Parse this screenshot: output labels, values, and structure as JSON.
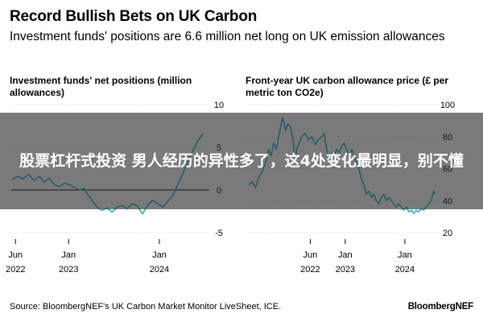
{
  "header": {
    "title": "Record Bullish Bets on UK Carbon",
    "subtitle": "Investment funds' positions are 6.6 million net long on UK emission allowances"
  },
  "overlay": {
    "text": "股票杠杆式投资 男人经历的异性多了，这4处变化最明显，别不懂"
  },
  "footer": {
    "source": "Source: BloombergNEF's UK Carbon Market Monitor LiveSheet, ICE.",
    "brand": "BloombergNEF"
  },
  "colors": {
    "series": "#1fb5c8",
    "zero_line": "#000000",
    "grid": "#d9d9d9"
  },
  "chart_data": [
    {
      "type": "line",
      "title": "Investment funds' net positions (million allowances)",
      "x_ticks": [
        {
          "line1": "Jun",
          "line2": "2022",
          "date": "2022-06-01"
        },
        {
          "line1": "Jan",
          "line2": "2023",
          "date": "2023-01-01"
        },
        {
          "line1": "Jan",
          "line2": "2024",
          "date": "2024-01-01"
        }
      ],
      "y_ticks": [
        "10",
        "5",
        "0",
        "-5"
      ],
      "y_tick_values": [
        10,
        5,
        0,
        -5
      ],
      "xlim": [
        "2022-05-15",
        "2024-07-20"
      ],
      "ylim": [
        -5,
        10
      ],
      "grid": true,
      "series": [
        {
          "values": [
            [
              "2022-05-20",
              1.2
            ],
            [
              "2022-06-10",
              1.6
            ],
            [
              "2022-07-01",
              1.3
            ],
            [
              "2022-07-25",
              1.8
            ],
            [
              "2022-08-15",
              1.1
            ],
            [
              "2022-09-05",
              1.6
            ],
            [
              "2022-09-25",
              0.9
            ],
            [
              "2022-10-15",
              1.4
            ],
            [
              "2022-11-05",
              0.6
            ],
            [
              "2022-11-25",
              0.4
            ],
            [
              "2022-12-15",
              0.8
            ],
            [
              "2023-01-05",
              0.6
            ],
            [
              "2023-01-25",
              0.3
            ],
            [
              "2023-02-15",
              0.0
            ],
            [
              "2023-03-05",
              0.2
            ],
            [
              "2023-03-20",
              -0.6
            ],
            [
              "2023-04-05",
              -1.2
            ],
            [
              "2023-04-25",
              -2.0
            ],
            [
              "2023-05-15",
              -2.4
            ],
            [
              "2023-06-05",
              -2.1
            ],
            [
              "2023-06-25",
              -2.6
            ],
            [
              "2023-07-15",
              -2.0
            ],
            [
              "2023-08-05",
              -1.8
            ],
            [
              "2023-08-25",
              -2.2
            ],
            [
              "2023-09-15",
              -1.6
            ],
            [
              "2023-10-05",
              -1.9
            ],
            [
              "2023-10-25",
              -2.8
            ],
            [
              "2023-11-15",
              -1.8
            ],
            [
              "2023-12-05",
              -1.2
            ],
            [
              "2023-12-25",
              -1.6
            ],
            [
              "2024-01-15",
              -2.0
            ],
            [
              "2024-02-05",
              -1.3
            ],
            [
              "2024-02-25",
              -0.6
            ],
            [
              "2024-03-15",
              0.6
            ],
            [
              "2024-04-05",
              2.0
            ],
            [
              "2024-04-25",
              3.4
            ],
            [
              "2024-05-15",
              4.6
            ],
            [
              "2024-06-05",
              5.8
            ],
            [
              "2024-06-25",
              6.6
            ]
          ]
        }
      ]
    },
    {
      "type": "line",
      "title": "Front-year UK carbon allowance price (£ per metric ton CO2e)",
      "x_ticks": [
        {
          "line1": "Jun",
          "line2": "2022",
          "date": "2022-06-01"
        },
        {
          "line1": "Jan",
          "line2": "2023",
          "date": "2023-01-01"
        },
        {
          "line1": "Jan",
          "line2": "2024",
          "date": "2024-01-01"
        }
      ],
      "y_ticks": [
        "100",
        "80",
        "60",
        "40",
        "20"
      ],
      "y_tick_values": [
        100,
        80,
        60,
        40,
        20
      ],
      "xlim": [
        "2021-05-01",
        "2024-08-10"
      ],
      "ylim": [
        20,
        100
      ],
      "grid": true,
      "series": [
        {
          "values": [
            [
              "2021-05-20",
              50
            ],
            [
              "2021-06-10",
              52
            ],
            [
              "2021-07-01",
              48
            ],
            [
              "2021-07-20",
              54
            ],
            [
              "2021-08-10",
              58
            ],
            [
              "2021-09-01",
              64
            ],
            [
              "2021-09-20",
              72
            ],
            [
              "2021-10-05",
              68
            ],
            [
              "2021-10-20",
              76
            ],
            [
              "2021-11-05",
              72
            ],
            [
              "2021-11-20",
              80
            ],
            [
              "2021-12-05",
              88
            ],
            [
              "2021-12-15",
              92
            ],
            [
              "2022-01-01",
              84
            ],
            [
              "2022-01-15",
              88
            ],
            [
              "2022-02-01",
              86
            ],
            [
              "2022-02-15",
              78
            ],
            [
              "2022-03-01",
              64
            ],
            [
              "2022-03-10",
              72
            ],
            [
              "2022-03-25",
              76
            ],
            [
              "2022-04-10",
              80
            ],
            [
              "2022-05-01",
              82
            ],
            [
              "2022-05-20",
              78
            ],
            [
              "2022-06-10",
              80
            ],
            [
              "2022-07-01",
              75
            ],
            [
              "2022-07-20",
              78
            ],
            [
              "2022-08-10",
              80
            ],
            [
              "2022-08-25",
              82
            ],
            [
              "2022-09-10",
              72
            ],
            [
              "2022-09-25",
              66
            ],
            [
              "2022-10-10",
              70
            ],
            [
              "2022-10-25",
              68
            ],
            [
              "2022-11-10",
              72
            ],
            [
              "2022-11-25",
              70
            ],
            [
              "2022-12-10",
              74
            ],
            [
              "2022-12-25",
              76
            ],
            [
              "2023-01-10",
              72
            ],
            [
              "2023-01-25",
              68
            ],
            [
              "2023-02-10",
              72
            ],
            [
              "2023-02-25",
              68
            ],
            [
              "2023-03-10",
              64
            ],
            [
              "2023-03-25",
              60
            ],
            [
              "2023-04-10",
              54
            ],
            [
              "2023-04-25",
              50
            ],
            [
              "2023-05-10",
              44
            ],
            [
              "2023-05-25",
              46
            ],
            [
              "2023-06-10",
              42
            ],
            [
              "2023-06-25",
              44
            ],
            [
              "2023-07-10",
              40
            ],
            [
              "2023-07-25",
              38
            ],
            [
              "2023-08-10",
              42
            ],
            [
              "2023-08-25",
              44
            ],
            [
              "2023-09-10",
              40
            ],
            [
              "2023-09-25",
              42
            ],
            [
              "2023-10-10",
              40
            ],
            [
              "2023-10-25",
              38
            ],
            [
              "2023-11-10",
              36
            ],
            [
              "2023-11-25",
              38
            ],
            [
              "2023-12-10",
              36
            ],
            [
              "2023-12-25",
              34
            ],
            [
              "2024-01-10",
              36
            ],
            [
              "2024-01-25",
              33
            ],
            [
              "2024-02-10",
              34
            ],
            [
              "2024-02-25",
              32
            ],
            [
              "2024-03-10",
              34
            ],
            [
              "2024-03-25",
              33
            ],
            [
              "2024-04-10",
              35
            ],
            [
              "2024-04-25",
              34
            ],
            [
              "2024-05-10",
              36
            ],
            [
              "2024-05-25",
              38
            ],
            [
              "2024-06-10",
              40
            ],
            [
              "2024-06-25",
              46
            ],
            [
              "2024-07-05",
              44
            ]
          ]
        }
      ]
    }
  ]
}
